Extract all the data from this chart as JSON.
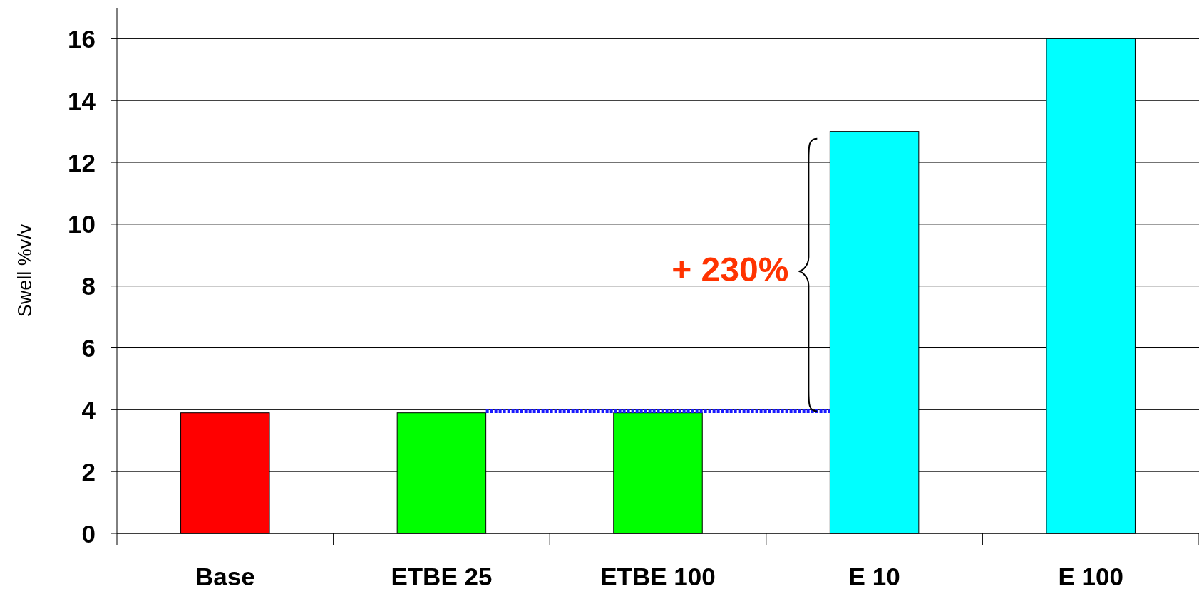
{
  "chart_data": {
    "type": "bar",
    "ylabel": "Swell %v/v",
    "categories": [
      "Base",
      "ETBE 25",
      "ETBE 100",
      "E 10",
      "E 100"
    ],
    "values": [
      3.9,
      3.9,
      3.9,
      13,
      16
    ],
    "colors": [
      "#ff0000",
      "#00ff00",
      "#00ff00",
      "#00ffff",
      "#00ffff"
    ],
    "ylim": [
      0,
      17
    ],
    "yticks": [
      0,
      2,
      4,
      6,
      8,
      10,
      12,
      14,
      16
    ],
    "grid": "y",
    "ref_lines": [
      {
        "axis": "y",
        "value": 3.95,
        "color": "#1a1aff",
        "line_style": "dotted"
      }
    ],
    "annotations": [
      "+ 230%"
    ]
  }
}
